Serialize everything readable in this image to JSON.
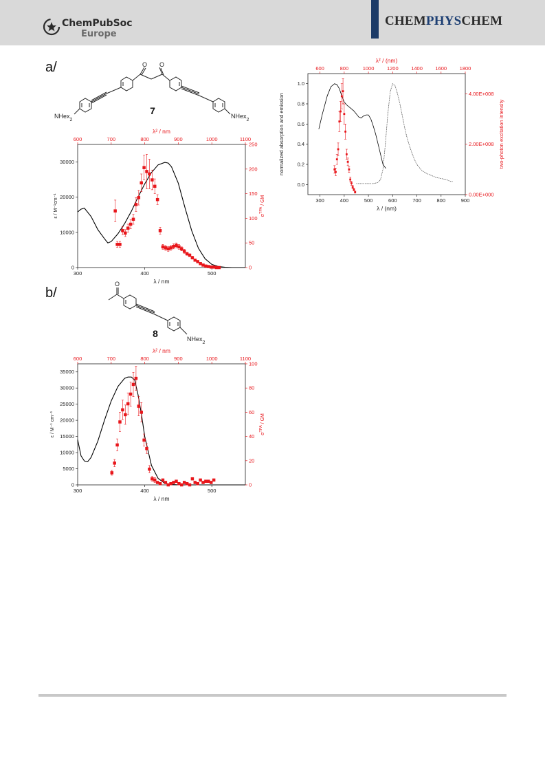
{
  "header": {
    "publisher_line1": "ChemPubSoc",
    "publisher_line2": "Europe",
    "journal_part1": "CHEM",
    "journal_part2": "PHYS",
    "journal_part3": "CHEM",
    "stripe_color": "#1b3a67",
    "logo_icon": "chempubsoc-star-icon"
  },
  "figure": {
    "panel_a_label": "a/",
    "panel_b_label": "b/",
    "compound_7": {
      "number": "7",
      "substituent_left": "NHex",
      "substituent_right": "NHex",
      "subscript": "2",
      "carbonyl": "O"
    },
    "compound_8": {
      "number": "8",
      "substituent": "NHex",
      "subscript": "2",
      "carbonyl": "O"
    }
  },
  "chart_data": [
    {
      "type": "line",
      "panel": "a",
      "title": "",
      "xlabel": "λ / nm",
      "x_top_label": "λ² / nm",
      "ylabel": "ε / M⁻¹cm⁻¹",
      "y_right_label": "σ^TPA / GM",
      "xlim": [
        300,
        550
      ],
      "x_top_lim": [
        600,
        1100
      ],
      "ylim": [
        0,
        35000
      ],
      "y_right_lim": [
        0,
        250
      ],
      "x_ticks": [
        "300",
        "400",
        "500"
      ],
      "x_top_ticks": [
        "600",
        "700",
        "800",
        "900",
        "1000",
        "1100"
      ],
      "y_ticks": [
        "0",
        "10000",
        "20000",
        "30000"
      ],
      "y_right_ticks": [
        "0",
        "50",
        "100",
        "150",
        "200",
        "250"
      ],
      "series": [
        {
          "name": "",
          "color": "#000000",
          "axis": "left",
          "x": [
            300,
            305,
            310,
            320,
            330,
            340,
            345,
            350,
            360,
            370,
            380,
            390,
            400,
            410,
            420,
            430,
            435,
            440,
            450,
            460,
            470,
            480,
            490,
            500,
            510,
            520,
            530,
            540,
            550
          ],
          "y": [
            15800,
            16600,
            16900,
            14500,
            10800,
            8200,
            7000,
            7400,
            9600,
            12500,
            16000,
            20000,
            23800,
            27000,
            29200,
            29900,
            29700,
            28600,
            24000,
            17000,
            10500,
            5500,
            2500,
            900,
            300,
            100,
            0,
            0,
            0
          ]
        },
        {
          "name": "",
          "color": "#e8161b",
          "axis": "right",
          "x": [
            356,
            359,
            363,
            367,
            371,
            375,
            379,
            383,
            387,
            391,
            395,
            399,
            403,
            407,
            411,
            415,
            419,
            423,
            427,
            431,
            435,
            439,
            443,
            447,
            451,
            455,
            459,
            463,
            467,
            471,
            475,
            479,
            483,
            487,
            491,
            495,
            499,
            503,
            507,
            511
          ],
          "y": [
            115,
            47,
            47,
            75,
            70,
            80,
            88,
            98,
            128,
            142,
            172,
            203,
            195,
            190,
            178,
            165,
            138,
            75,
            42,
            40,
            38,
            40,
            43,
            45,
            42,
            38,
            33,
            28,
            25,
            20,
            15,
            12,
            8,
            5,
            3,
            2,
            1,
            1,
            0,
            0
          ],
          "error": [
            22,
            6,
            6,
            8,
            7,
            8,
            9,
            10,
            14,
            15,
            18,
            25,
            35,
            30,
            20,
            15,
            10,
            7,
            5,
            5,
            5,
            5,
            5,
            5,
            5,
            4,
            4,
            3,
            3,
            3,
            2,
            2,
            2,
            1,
            1,
            1,
            1,
            1,
            0,
            0
          ]
        }
      ]
    },
    {
      "type": "line",
      "panel": "b",
      "title": "",
      "xlabel": "λ / nm",
      "x_top_label": "λ² / nm",
      "ylabel": "ε / M⁻¹ cm⁻¹",
      "y_right_label": "σ^TPA / GM",
      "xlim": [
        300,
        550
      ],
      "x_top_lim": [
        600,
        1100
      ],
      "ylim": [
        0,
        37500
      ],
      "y_right_lim": [
        0,
        100
      ],
      "x_ticks": [
        "300",
        "400",
        "500"
      ],
      "x_top_ticks": [
        "600",
        "700",
        "800",
        "900",
        "1000",
        "1100"
      ],
      "y_ticks": [
        "0",
        "5000",
        "10000",
        "15000",
        "20000",
        "25000",
        "30000",
        "35000"
      ],
      "y_right_ticks": [
        "0",
        "20",
        "40",
        "60",
        "80",
        "100"
      ],
      "series": [
        {
          "name": "",
          "color": "#000000",
          "axis": "left",
          "x": [
            300,
            305,
            310,
            315,
            320,
            330,
            340,
            350,
            360,
            370,
            375,
            380,
            385,
            390,
            395,
            400,
            410,
            420,
            430,
            440,
            450,
            460,
            480,
            500,
            550
          ],
          "y": [
            14000,
            9000,
            7400,
            7200,
            8500,
            13500,
            20000,
            26000,
            30500,
            33000,
            33400,
            33400,
            32500,
            28000,
            22000,
            15000,
            6000,
            2000,
            500,
            100,
            0,
            0,
            0,
            0,
            0
          ]
        },
        {
          "name": "",
          "color": "#e8161b",
          "axis": "right",
          "x": [
            351,
            355,
            359,
            363,
            367,
            371,
            375,
            379,
            383,
            387,
            391,
            395,
            399,
            403,
            407,
            411,
            415,
            419,
            423,
            427,
            431,
            435,
            439,
            443,
            447,
            451,
            455,
            459,
            463,
            467,
            471,
            475,
            479,
            483,
            487,
            491,
            495,
            499,
            503
          ],
          "y": [
            10,
            18,
            33,
            52,
            62,
            58,
            67,
            75,
            83,
            88,
            65,
            60,
            37,
            30,
            13,
            5,
            4,
            2,
            1,
            4,
            2,
            0,
            1,
            2,
            3,
            1,
            0,
            2,
            1,
            0,
            5,
            2,
            1,
            4,
            2,
            3,
            3,
            2,
            4
          ],
          "error": [
            2,
            3,
            5,
            8,
            8,
            8,
            9,
            10,
            10,
            10,
            8,
            8,
            5,
            4,
            3,
            2,
            2,
            1,
            1,
            1,
            1,
            1,
            1,
            1,
            1,
            1,
            1,
            1,
            1,
            1,
            1,
            1,
            1,
            1,
            1,
            1,
            1,
            1,
            1
          ]
        }
      ]
    },
    {
      "type": "line",
      "panel": "c",
      "title": "",
      "xlabel": "λ / (nm)",
      "x_top_label": "λ² / (nm)",
      "ylabel": "normalized absorption and emission",
      "y_right_label": "two-photon excitation intensity",
      "xlim": [
        250,
        900
      ],
      "x_top_lim": [
        500,
        1800
      ],
      "ylim": [
        -0.1,
        1.1
      ],
      "y_right_lim": [
        0,
        480000000.0
      ],
      "x_ticks": [
        "300",
        "400",
        "500",
        "600",
        "700",
        "800",
        "900"
      ],
      "x_top_ticks": [
        "600",
        "800",
        "1000",
        "1200",
        "1400",
        "1600",
        "1800"
      ],
      "y_ticks": [
        "0.0",
        "0.2",
        "0.4",
        "0.6",
        "0.8",
        "1.0"
      ],
      "y_right_ticks": [
        "0.00E+000",
        "2.00E+008",
        "4.00E+008"
      ],
      "series": [
        {
          "name": "",
          "color": "#000000",
          "axis": "left",
          "x": [
            295,
            310,
            330,
            345,
            360,
            370,
            380,
            390,
            400,
            410,
            420,
            430,
            440,
            450,
            460,
            470,
            480,
            490,
            500,
            510,
            520,
            530,
            540,
            550,
            560,
            572
          ],
          "y": [
            0.55,
            0.7,
            0.88,
            0.97,
            1.0,
            0.99,
            0.95,
            0.88,
            0.82,
            0.79,
            0.77,
            0.75,
            0.73,
            0.7,
            0.67,
            0.66,
            0.68,
            0.69,
            0.69,
            0.65,
            0.58,
            0.5,
            0.4,
            0.3,
            0.2,
            0.16
          ]
        },
        {
          "name": "",
          "color": "#555555",
          "axis": "left",
          "x": [
            450,
            460,
            480,
            500,
            520,
            540,
            550,
            560,
            570,
            580,
            590,
            600,
            610,
            620,
            630,
            640,
            650,
            660,
            670,
            680,
            690,
            700,
            720,
            740,
            760,
            780,
            800,
            820,
            840,
            850
          ],
          "y": [
            0.01,
            0.01,
            0.01,
            0.01,
            0.01,
            0.02,
            0.05,
            0.15,
            0.4,
            0.7,
            0.92,
            1.0,
            0.98,
            0.9,
            0.8,
            0.68,
            0.56,
            0.46,
            0.38,
            0.31,
            0.25,
            0.2,
            0.14,
            0.11,
            0.09,
            0.07,
            0.06,
            0.05,
            0.03,
            0.03
          ]
        },
        {
          "name": "",
          "color": "#e8161b",
          "axis": "right",
          "x": [
            360,
            365,
            370,
            375,
            380,
            385,
            390,
            395,
            400,
            405,
            410,
            415,
            420,
            425,
            430,
            435,
            440,
            445
          ],
          "y": [
            100000000.0,
            90000000.0,
            140000000.0,
            180000000.0,
            290000000.0,
            330000000.0,
            390000000.0,
            410000000.0,
            320000000.0,
            250000000.0,
            160000000.0,
            130000000.0,
            100000000.0,
            60000000.0,
            45000000.0,
            30000000.0,
            20000000.0,
            10000000.0
          ],
          "error": [
            15000000.0,
            15000000.0,
            20000000.0,
            25000000.0,
            40000000.0,
            40000000.0,
            50000000.0,
            50000000.0,
            40000000.0,
            30000000.0,
            20000000.0,
            15000000.0,
            12000000.0,
            10000000.0,
            8000000.0,
            6000000.0,
            5000000.0,
            4000000.0
          ]
        }
      ]
    }
  ]
}
